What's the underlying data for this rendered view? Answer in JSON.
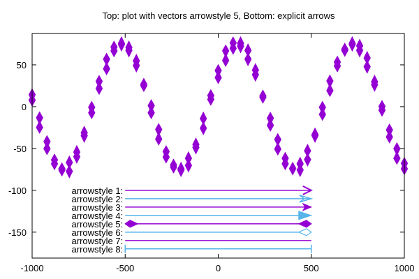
{
  "chart_data": {
    "type": "vectors",
    "title": "Top: plot with vectors arrowstyle 5, Bottom: explicit arrows",
    "xlabel": "",
    "ylabel": "",
    "xlim": [
      -1000,
      1000
    ],
    "ylim": [
      -181,
      87.5
    ],
    "xticks": [
      -1000,
      -500,
      0,
      500,
      1000
    ],
    "yticks": [
      50,
      0,
      -50,
      -100,
      -150
    ],
    "grid": false,
    "colors": {
      "purple": "#9400d3",
      "blue": "#56b4e9"
    },
    "vectors": {
      "style": "arrowstyle 5",
      "x": [
        -1000,
        -960,
        -920,
        -880,
        -840,
        -800,
        -760,
        -720,
        -680,
        -640,
        -600,
        -560,
        -520,
        -480,
        -440,
        -400,
        -360,
        -320,
        -280,
        -240,
        -200,
        -160,
        -120,
        -80,
        -40,
        0,
        40,
        80,
        120,
        160,
        200,
        240,
        280,
        320,
        360,
        400,
        440,
        480,
        520,
        560,
        600,
        640,
        680,
        720,
        760,
        800,
        840,
        880,
        920,
        960,
        1000
      ],
      "y": [
        11,
        -19,
        -46,
        -66,
        -75,
        -72,
        -57,
        -33,
        -4,
        26,
        51,
        69,
        75,
        69,
        52,
        26,
        -3,
        -33,
        -57,
        -71,
        -75,
        -66,
        -47,
        -20,
        11,
        39,
        61,
        73,
        74,
        62,
        41,
        12,
        -18,
        -45,
        -65,
        -74,
        -72,
        -58,
        -34,
        -5,
        25,
        51,
        68,
        75,
        70,
        53,
        28,
        -2,
        -32,
        -56,
        -71
      ],
      "dy": [
        20,
        25,
        22,
        18,
        15,
        3,
        8,
        10,
        20,
        22,
        25,
        18,
        12,
        10,
        8,
        15,
        22,
        25,
        20,
        16,
        12,
        5,
        10,
        2,
        18,
        22,
        25,
        20,
        10,
        3,
        8,
        15,
        22,
        25,
        20,
        14,
        6,
        3,
        12,
        22,
        25,
        18,
        15,
        12,
        8,
        3,
        10,
        18,
        22,
        25,
        20
      ]
    },
    "arrows": [
      {
        "label": "arrowstyle 1:",
        "y": -100,
        "from": -500,
        "to": 500,
        "color": "#9400d3",
        "head": "open"
      },
      {
        "label": "arrowstyle 2:",
        "y": -110,
        "from": -500,
        "to": 500,
        "color": "#56b4e9",
        "head": "open-back"
      },
      {
        "label": "arrowstyle 3:",
        "y": -120,
        "from": -500,
        "to": 500,
        "color": "#9400d3",
        "head": "filled"
      },
      {
        "label": "arrowstyle 4:",
        "y": -130,
        "from": -500,
        "to": 500,
        "color": "#56b4e9",
        "head": "filled-big"
      },
      {
        "label": "arrowstyle 5:",
        "y": -140,
        "from": -500,
        "to": 500,
        "color": "#9400d3",
        "head": "diamond-both"
      },
      {
        "label": "arrowstyle 6:",
        "y": -150,
        "from": -500,
        "to": 500,
        "color": "#56b4e9",
        "head": "empty-diamond"
      },
      {
        "label": "arrowstyle 7:",
        "y": -160,
        "from": -500,
        "to": 500,
        "color": "#9400d3",
        "head": "none"
      },
      {
        "label": "arrowstyle 8:",
        "y": -170,
        "from": -500,
        "to": 500,
        "color": "#56b4e9",
        "head": "bars"
      }
    ]
  }
}
